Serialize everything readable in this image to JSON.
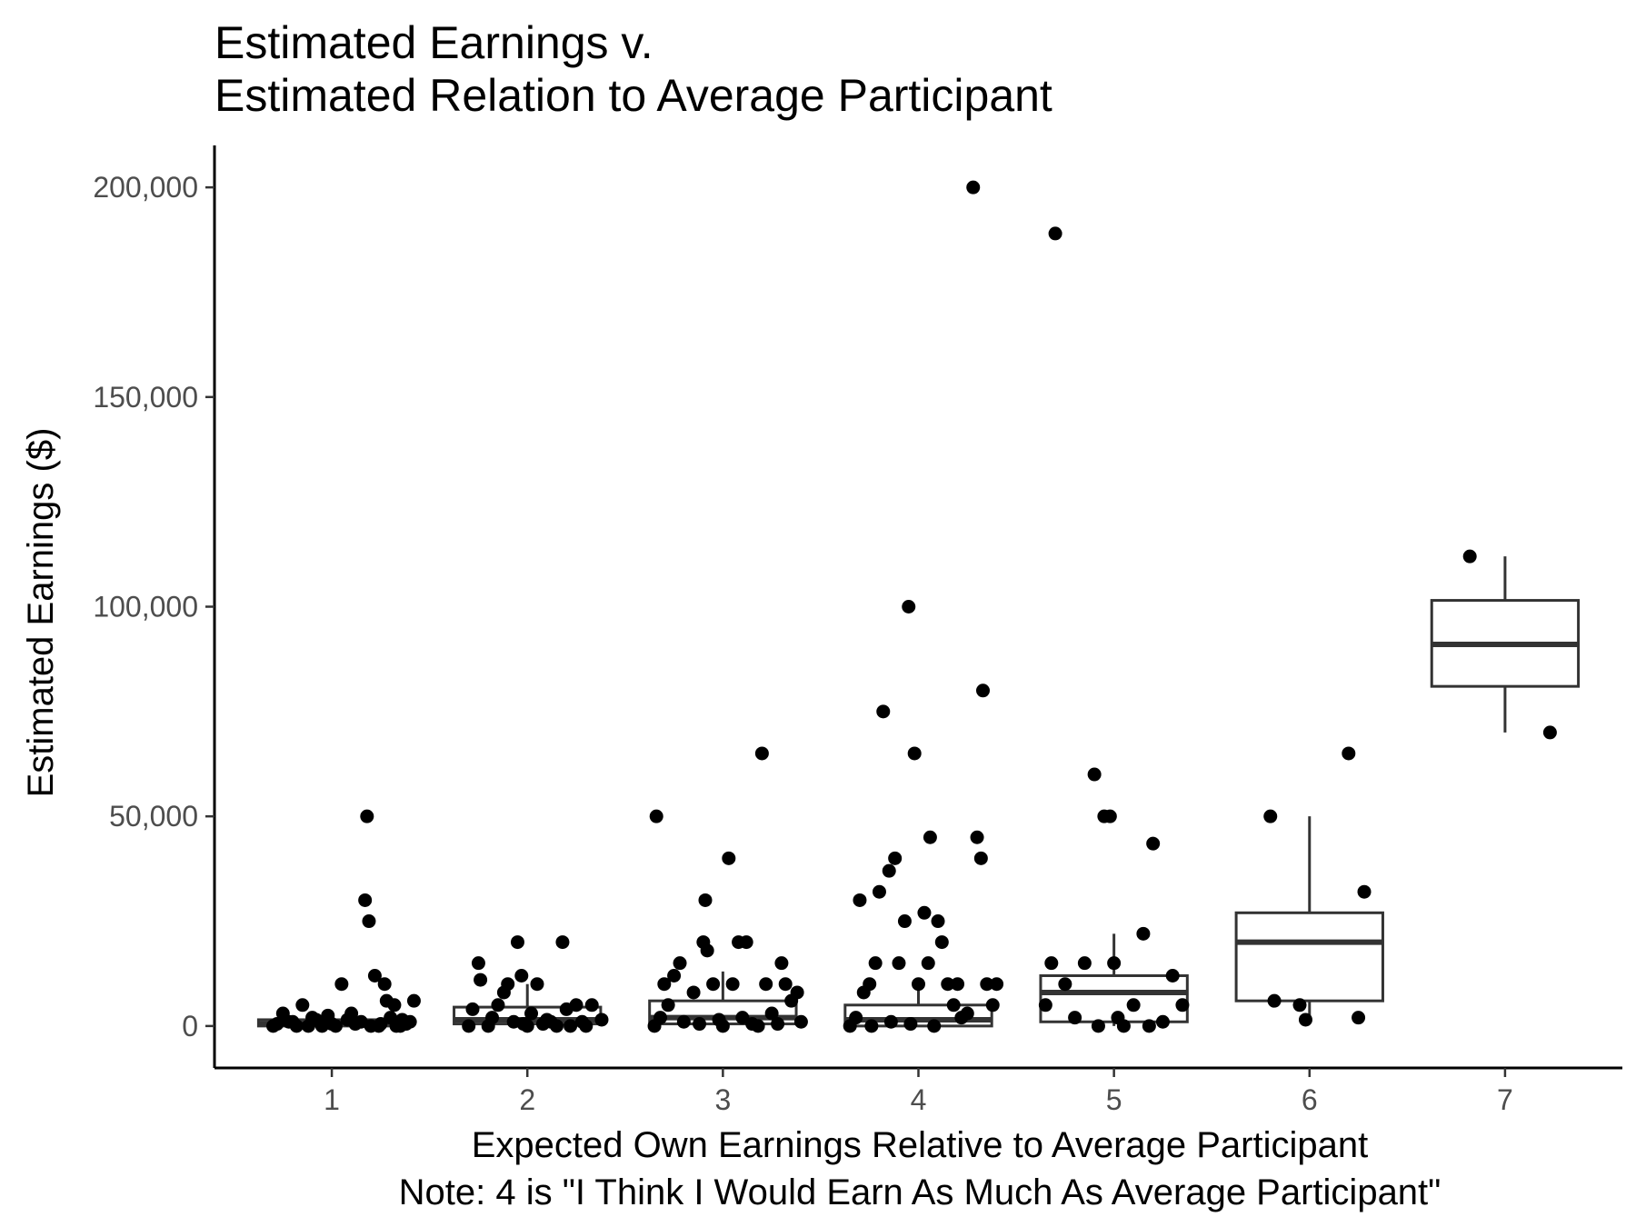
{
  "chart_data": {
    "type": "boxplot",
    "title_lines": [
      "Estimated Earnings v.",
      "Estimated Relation to Average Participant"
    ],
    "xlabel_lines": [
      "Expected Own Earnings Relative to Average Participant",
      "Note: 4 is \"I Think I Would Earn As Much As Average Participant\""
    ],
    "ylabel": "Estimated Earnings ($)",
    "ylim": [
      -10000,
      210000
    ],
    "y_ticks": [
      0,
      50000,
      100000,
      150000,
      200000
    ],
    "y_tick_labels": [
      "0",
      "50,000",
      "100,000",
      "150,000",
      "200,000"
    ],
    "categories": [
      "1",
      "2",
      "3",
      "4",
      "5",
      "6",
      "7"
    ],
    "grid": false,
    "legend": "none",
    "colors": {
      "point": "#000000",
      "box_outline": "#333333",
      "box_fill": "#ffffff",
      "axis": "#000000",
      "tick_label": "#4d4d4d"
    },
    "boxes": [
      {
        "category": "1",
        "q1": 0,
        "median": 500,
        "q3": 1500,
        "whisker_low": 0,
        "whisker_high": 3000
      },
      {
        "category": "2",
        "q1": 500,
        "median": 1500,
        "q3": 4500,
        "whisker_low": 0,
        "whisker_high": 10000
      },
      {
        "category": "3",
        "q1": 500,
        "median": 2000,
        "q3": 6000,
        "whisker_low": 0,
        "whisker_high": 13000
      },
      {
        "category": "4",
        "q1": 0,
        "median": 1500,
        "q3": 5000,
        "whisker_low": 0,
        "whisker_high": 10000
      },
      {
        "category": "5",
        "q1": 1000,
        "median": 8000,
        "q3": 12000,
        "whisker_low": 0,
        "whisker_high": 22000
      },
      {
        "category": "6",
        "q1": 6000,
        "median": 20000,
        "q3": 27000,
        "whisker_low": 1500,
        "whisker_high": 50000
      },
      {
        "category": "7",
        "q1": 81000,
        "median": 91000,
        "q3": 101500,
        "whisker_low": 70000,
        "whisker_high": 112000
      }
    ],
    "points": [
      {
        "x": 0.7,
        "y": 0
      },
      {
        "x": 0.75,
        "y": 3000
      },
      {
        "x": 0.8,
        "y": 1000
      },
      {
        "x": 0.85,
        "y": 5000
      },
      {
        "x": 0.9,
        "y": 2000
      },
      {
        "x": 0.95,
        "y": 0
      },
      {
        "x": 1.0,
        "y": 500
      },
      {
        "x": 1.05,
        "y": 10000
      },
      {
        "x": 1.1,
        "y": 3000
      },
      {
        "x": 1.15,
        "y": 1000
      },
      {
        "x": 1.2,
        "y": 0
      },
      {
        "x": 1.25,
        "y": 500
      },
      {
        "x": 1.3,
        "y": 2000
      },
      {
        "x": 1.35,
        "y": 0
      },
      {
        "x": 1.4,
        "y": 1000
      },
      {
        "x": 0.72,
        "y": 500
      },
      {
        "x": 0.82,
        "y": 0
      },
      {
        "x": 0.92,
        "y": 1500
      },
      {
        "x": 1.02,
        "y": 0
      },
      {
        "x": 1.12,
        "y": 500
      },
      {
        "x": 1.22,
        "y": 12000
      },
      {
        "x": 1.28,
        "y": 6000
      },
      {
        "x": 1.32,
        "y": 5000
      },
      {
        "x": 1.38,
        "y": 500
      },
      {
        "x": 1.18,
        "y": 50000
      },
      {
        "x": 1.17,
        "y": 30000
      },
      {
        "x": 1.19,
        "y": 25000
      },
      {
        "x": 1.27,
        "y": 10000
      },
      {
        "x": 1.42,
        "y": 6000
      },
      {
        "x": 1.08,
        "y": 1500
      },
      {
        "x": 0.98,
        "y": 2500
      },
      {
        "x": 0.88,
        "y": 0
      },
      {
        "x": 0.78,
        "y": 1000
      },
      {
        "x": 1.33,
        "y": 0
      },
      {
        "x": 1.36,
        "y": 1500
      },
      {
        "x": 1.24,
        "y": 0
      },
      {
        "x": 1.7,
        "y": 0
      },
      {
        "x": 1.72,
        "y": 4000
      },
      {
        "x": 1.75,
        "y": 15000
      },
      {
        "x": 1.76,
        "y": 11000
      },
      {
        "x": 1.8,
        "y": 0
      },
      {
        "x": 1.85,
        "y": 5000
      },
      {
        "x": 1.88,
        "y": 8000
      },
      {
        "x": 1.9,
        "y": 10000
      },
      {
        "x": 1.93,
        "y": 1000
      },
      {
        "x": 1.95,
        "y": 20000
      },
      {
        "x": 1.97,
        "y": 12000
      },
      {
        "x": 2.0,
        "y": 0
      },
      {
        "x": 2.02,
        "y": 3000
      },
      {
        "x": 2.05,
        "y": 10000
      },
      {
        "x": 2.08,
        "y": 500
      },
      {
        "x": 2.1,
        "y": 1500
      },
      {
        "x": 2.15,
        "y": 0
      },
      {
        "x": 2.18,
        "y": 20000
      },
      {
        "x": 2.2,
        "y": 4000
      },
      {
        "x": 2.25,
        "y": 5000
      },
      {
        "x": 2.28,
        "y": 1000
      },
      {
        "x": 2.3,
        "y": 0
      },
      {
        "x": 2.33,
        "y": 5000
      },
      {
        "x": 2.38,
        "y": 1500
      },
      {
        "x": 1.82,
        "y": 2000
      },
      {
        "x": 1.98,
        "y": 500
      },
      {
        "x": 2.12,
        "y": 1000
      },
      {
        "x": 2.22,
        "y": 0
      },
      {
        "x": 2.65,
        "y": 0
      },
      {
        "x": 2.66,
        "y": 50000
      },
      {
        "x": 2.7,
        "y": 10000
      },
      {
        "x": 2.72,
        "y": 5000
      },
      {
        "x": 2.75,
        "y": 12000
      },
      {
        "x": 2.78,
        "y": 15000
      },
      {
        "x": 2.8,
        "y": 1000
      },
      {
        "x": 2.85,
        "y": 8000
      },
      {
        "x": 2.9,
        "y": 20000
      },
      {
        "x": 2.91,
        "y": 30000
      },
      {
        "x": 2.92,
        "y": 18000
      },
      {
        "x": 2.95,
        "y": 10000
      },
      {
        "x": 3.0,
        "y": 0
      },
      {
        "x": 3.03,
        "y": 40000
      },
      {
        "x": 3.05,
        "y": 10000
      },
      {
        "x": 3.08,
        "y": 20000
      },
      {
        "x": 3.1,
        "y": 2000
      },
      {
        "x": 3.12,
        "y": 20000
      },
      {
        "x": 3.15,
        "y": 500
      },
      {
        "x": 3.2,
        "y": 65000
      },
      {
        "x": 3.22,
        "y": 10000
      },
      {
        "x": 3.25,
        "y": 3000
      },
      {
        "x": 3.3,
        "y": 15000
      },
      {
        "x": 3.32,
        "y": 10000
      },
      {
        "x": 3.35,
        "y": 6000
      },
      {
        "x": 3.38,
        "y": 8000
      },
      {
        "x": 3.4,
        "y": 1000
      },
      {
        "x": 2.88,
        "y": 500
      },
      {
        "x": 2.98,
        "y": 1500
      },
      {
        "x": 3.18,
        "y": 0
      },
      {
        "x": 3.28,
        "y": 500
      },
      {
        "x": 2.68,
        "y": 2000
      },
      {
        "x": 3.65,
        "y": 0
      },
      {
        "x": 3.68,
        "y": 2000
      },
      {
        "x": 3.7,
        "y": 30000
      },
      {
        "x": 3.72,
        "y": 8000
      },
      {
        "x": 3.75,
        "y": 10000
      },
      {
        "x": 3.78,
        "y": 15000
      },
      {
        "x": 3.8,
        "y": 32000
      },
      {
        "x": 3.82,
        "y": 75000
      },
      {
        "x": 3.85,
        "y": 37000
      },
      {
        "x": 3.88,
        "y": 40000
      },
      {
        "x": 3.9,
        "y": 15000
      },
      {
        "x": 3.93,
        "y": 25000
      },
      {
        "x": 3.95,
        "y": 100000
      },
      {
        "x": 3.98,
        "y": 65000
      },
      {
        "x": 4.0,
        "y": 10000
      },
      {
        "x": 4.03,
        "y": 27000
      },
      {
        "x": 4.05,
        "y": 15000
      },
      {
        "x": 4.06,
        "y": 45000
      },
      {
        "x": 4.1,
        "y": 25000
      },
      {
        "x": 4.12,
        "y": 20000
      },
      {
        "x": 4.15,
        "y": 10000
      },
      {
        "x": 4.18,
        "y": 5000
      },
      {
        "x": 4.2,
        "y": 10000
      },
      {
        "x": 4.25,
        "y": 3000
      },
      {
        "x": 4.28,
        "y": 200000
      },
      {
        "x": 4.3,
        "y": 45000
      },
      {
        "x": 4.32,
        "y": 40000
      },
      {
        "x": 4.33,
        "y": 80000
      },
      {
        "x": 4.35,
        "y": 10000
      },
      {
        "x": 4.38,
        "y": 5000
      },
      {
        "x": 4.4,
        "y": 10000
      },
      {
        "x": 3.76,
        "y": 0
      },
      {
        "x": 3.86,
        "y": 1000
      },
      {
        "x": 3.96,
        "y": 500
      },
      {
        "x": 4.08,
        "y": 0
      },
      {
        "x": 4.22,
        "y": 2000
      },
      {
        "x": 4.65,
        "y": 5000
      },
      {
        "x": 4.68,
        "y": 15000
      },
      {
        "x": 4.7,
        "y": 189000
      },
      {
        "x": 4.75,
        "y": 10000
      },
      {
        "x": 4.8,
        "y": 2000
      },
      {
        "x": 4.85,
        "y": 15000
      },
      {
        "x": 4.9,
        "y": 60000
      },
      {
        "x": 4.92,
        "y": 0
      },
      {
        "x": 4.95,
        "y": 50000
      },
      {
        "x": 4.98,
        "y": 50000
      },
      {
        "x": 5.0,
        "y": 15000
      },
      {
        "x": 5.05,
        "y": 0
      },
      {
        "x": 5.1,
        "y": 5000
      },
      {
        "x": 5.15,
        "y": 22000
      },
      {
        "x": 5.2,
        "y": 43500
      },
      {
        "x": 5.25,
        "y": 1000
      },
      {
        "x": 5.3,
        "y": 12000
      },
      {
        "x": 5.35,
        "y": 5000
      },
      {
        "x": 5.02,
        "y": 2000
      },
      {
        "x": 5.18,
        "y": 0
      },
      {
        "x": 5.8,
        "y": 50000
      },
      {
        "x": 5.82,
        "y": 6000
      },
      {
        "x": 5.95,
        "y": 5000
      },
      {
        "x": 5.98,
        "y": 1500
      },
      {
        "x": 6.2,
        "y": 65000
      },
      {
        "x": 6.25,
        "y": 2000
      },
      {
        "x": 6.28,
        "y": 32000
      },
      {
        "x": 6.82,
        "y": 112000
      },
      {
        "x": 7.23,
        "y": 70000
      }
    ]
  }
}
